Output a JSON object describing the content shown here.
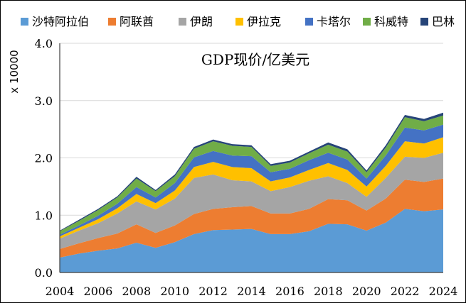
{
  "chart_data": {
    "type": "area",
    "stacked": true,
    "title": "GDP现价/亿美元",
    "xlabel": "",
    "ylabel": "x 10000",
    "ylim": [
      0,
      4.0
    ],
    "yticks": [
      "0.0",
      "1.0",
      "2.0",
      "3.0",
      "4.0"
    ],
    "xticks": [
      "2004",
      "2006",
      "2008",
      "2010",
      "2012",
      "2014",
      "2016",
      "2018",
      "2020",
      "2022",
      "2024"
    ],
    "x": [
      2004,
      2005,
      2006,
      2007,
      2008,
      2009,
      2010,
      2011,
      2012,
      2013,
      2014,
      2015,
      2016,
      2017,
      2018,
      2019,
      2020,
      2021,
      2022,
      2023,
      2024
    ],
    "series": [
      {
        "name": "沙特阿拉伯",
        "color": "#5B9BD5",
        "values": [
          0.26,
          0.33,
          0.38,
          0.42,
          0.52,
          0.43,
          0.53,
          0.67,
          0.74,
          0.75,
          0.76,
          0.67,
          0.67,
          0.72,
          0.85,
          0.84,
          0.73,
          0.87,
          1.11,
          1.07,
          1.1
        ]
      },
      {
        "name": "阿联酋",
        "color": "#ED7D31",
        "values": [
          0.15,
          0.18,
          0.22,
          0.26,
          0.32,
          0.26,
          0.29,
          0.35,
          0.37,
          0.39,
          0.4,
          0.36,
          0.36,
          0.39,
          0.43,
          0.42,
          0.35,
          0.42,
          0.51,
          0.51,
          0.54
        ]
      },
      {
        "name": "伊朗",
        "color": "#A5A5A5",
        "values": [
          0.18,
          0.22,
          0.26,
          0.35,
          0.4,
          0.41,
          0.47,
          0.63,
          0.6,
          0.47,
          0.43,
          0.39,
          0.46,
          0.49,
          0.4,
          0.3,
          0.24,
          0.36,
          0.4,
          0.42,
          0.45
        ]
      },
      {
        "name": "伊拉克",
        "color": "#FFC000",
        "values": [
          0.04,
          0.05,
          0.07,
          0.09,
          0.13,
          0.11,
          0.14,
          0.19,
          0.22,
          0.23,
          0.23,
          0.17,
          0.17,
          0.19,
          0.23,
          0.23,
          0.18,
          0.21,
          0.27,
          0.25,
          0.27
        ]
      },
      {
        "name": "卡塔尔",
        "color": "#4472C4",
        "values": [
          0.03,
          0.04,
          0.06,
          0.08,
          0.12,
          0.1,
          0.13,
          0.17,
          0.19,
          0.2,
          0.21,
          0.16,
          0.15,
          0.17,
          0.18,
          0.18,
          0.14,
          0.18,
          0.24,
          0.23,
          0.22
        ]
      },
      {
        "name": "科威特",
        "color": "#70AD47",
        "values": [
          0.06,
          0.08,
          0.1,
          0.11,
          0.15,
          0.11,
          0.12,
          0.15,
          0.17,
          0.17,
          0.16,
          0.11,
          0.11,
          0.12,
          0.14,
          0.14,
          0.11,
          0.14,
          0.18,
          0.16,
          0.16
        ]
      },
      {
        "name": "巴林",
        "color": "#264478",
        "values": [
          0.01,
          0.02,
          0.02,
          0.02,
          0.03,
          0.02,
          0.03,
          0.03,
          0.03,
          0.03,
          0.03,
          0.03,
          0.03,
          0.03,
          0.04,
          0.04,
          0.03,
          0.04,
          0.04,
          0.04,
          0.05
        ]
      }
    ]
  }
}
